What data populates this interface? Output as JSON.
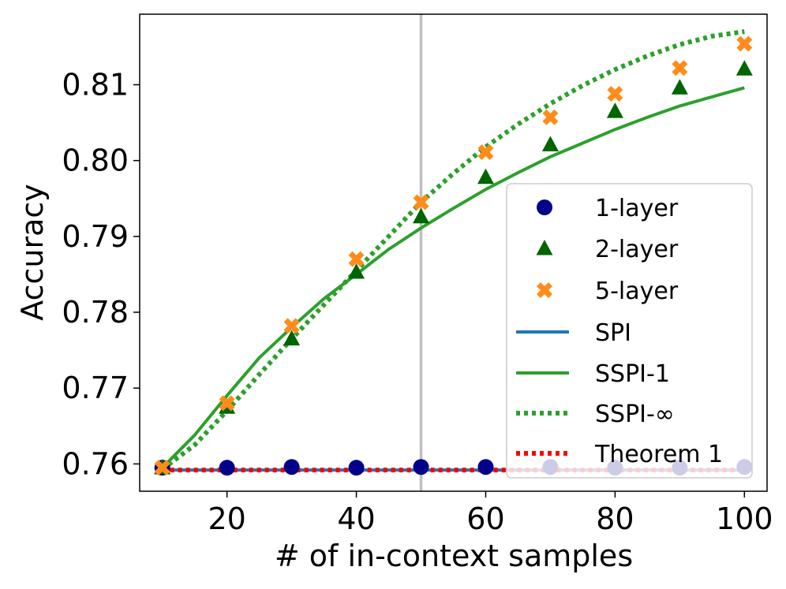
{
  "chart_data": {
    "type": "line",
    "xlabel": "# of in-context samples",
    "ylabel": "Accuracy",
    "xlim": [
      6.5,
      103.5
    ],
    "ylim": [
      0.7564,
      0.8193
    ],
    "xticks": [
      20,
      40,
      60,
      80,
      100
    ],
    "xtick_labels": [
      "20",
      "40",
      "60",
      "80",
      "100"
    ],
    "yticks": [
      0.76,
      0.77,
      0.78,
      0.79,
      0.8,
      0.81
    ],
    "ytick_labels": [
      "0.76",
      "0.77",
      "0.78",
      "0.79",
      "0.80",
      "0.81"
    ],
    "vline": 50,
    "colors": {
      "layer1": "#00008b",
      "layer2": "#006400",
      "layer5": "#ff8c1a",
      "spi": "#1f77b4",
      "sspi1": "#2ca02c",
      "sspiinf": "#2ca02c",
      "theorem1": "#ff0000",
      "vline": "#bfbfbf"
    },
    "series": [
      {
        "name": "1-layer",
        "kind": "marker",
        "marker": "circle",
        "x": [
          10,
          20,
          30,
          40,
          50,
          60,
          70,
          80,
          90,
          100
        ],
        "y": [
          0.7595,
          0.7595,
          0.7596,
          0.7595,
          0.7596,
          0.7596,
          0.7596,
          0.7595,
          0.7595,
          0.7596
        ]
      },
      {
        "name": "2-layer",
        "kind": "marker",
        "marker": "triangle",
        "x": [
          10,
          20,
          30,
          40,
          50,
          60,
          70,
          80,
          90,
          100
        ],
        "y": [
          0.7595,
          0.7675,
          0.7765,
          0.7853,
          0.7926,
          0.7978,
          0.8021,
          0.8065,
          0.8096,
          0.8121
        ]
      },
      {
        "name": "5-layer",
        "kind": "marker",
        "marker": "x",
        "x": [
          10,
          20,
          30,
          40,
          50,
          60,
          70,
          80,
          90,
          100
        ],
        "y": [
          0.7595,
          0.768,
          0.7782,
          0.787,
          0.7945,
          0.8011,
          0.8057,
          0.8088,
          0.8122,
          0.8154
        ]
      },
      {
        "name": "SPI",
        "kind": "line",
        "dash": "solid",
        "x": [
          10,
          100
        ],
        "y": [
          0.7592,
          0.7592
        ]
      },
      {
        "name": "SSPI-1",
        "kind": "line",
        "dash": "solid",
        "x": [
          10,
          15,
          20,
          25,
          30,
          35,
          40,
          45,
          50,
          55,
          60,
          65,
          70,
          75,
          80,
          85,
          90,
          95,
          100
        ],
        "y": [
          0.7595,
          0.7638,
          0.769,
          0.774,
          0.778,
          0.7818,
          0.785,
          0.7883,
          0.7911,
          0.7937,
          0.7962,
          0.7984,
          0.8005,
          0.8023,
          0.8041,
          0.8057,
          0.8072,
          0.8084,
          0.8096
        ]
      },
      {
        "name": "SSPI-∞",
        "kind": "line",
        "dash": "dotted",
        "x": [
          10,
          15,
          20,
          25,
          30,
          35,
          40,
          45,
          50,
          55,
          60,
          65,
          70,
          75,
          80,
          85,
          90,
          95,
          100
        ],
        "y": [
          0.7593,
          0.7625,
          0.767,
          0.7718,
          0.7765,
          0.781,
          0.7855,
          0.79,
          0.7945,
          0.7983,
          0.8018,
          0.8048,
          0.8075,
          0.8099,
          0.812,
          0.8138,
          0.8153,
          0.8164,
          0.817
        ]
      },
      {
        "name": "Theorem 1",
        "kind": "line",
        "dash": "dotted",
        "x": [
          10,
          100
        ],
        "y": [
          0.7592,
          0.7592
        ]
      }
    ],
    "legend_position": "lower-right"
  }
}
